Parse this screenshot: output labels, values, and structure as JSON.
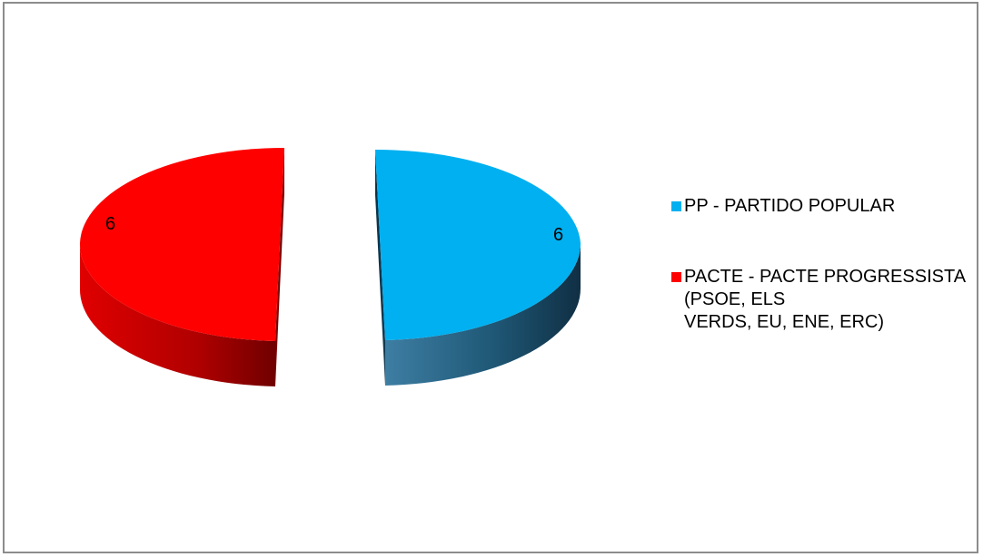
{
  "chart_data": {
    "type": "pie",
    "title": "",
    "slices": [
      {
        "label": "PP - PARTIDO POPULAR",
        "value": 6,
        "data_label": "6",
        "color": "#00B0F0",
        "side_light": "#2a6f91",
        "side_dark": "#123c55"
      },
      {
        "label": "PACTE - PACTE PROGRESSISTA\n(PSOE, ELS\nVERDS, EU, ENE, ERC)",
        "value": 6,
        "data_label": "6",
        "color": "#FF0000",
        "side_light": "#e60000",
        "side_dark": "#7a0000"
      }
    ],
    "style": "3d-exploded",
    "legend_position": "right"
  }
}
